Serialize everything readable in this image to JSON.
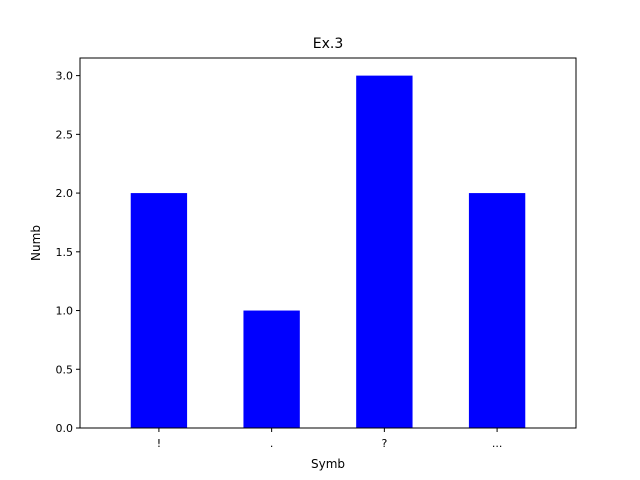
{
  "chart_data": {
    "type": "bar",
    "title": "Ex.3",
    "xlabel": "Symb",
    "ylabel": "Numb",
    "categories": [
      "!",
      ".",
      "?",
      "..."
    ],
    "values": [
      2,
      1,
      3,
      2
    ],
    "ylim": [
      0,
      3.15
    ],
    "yticks": [
      0,
      0.5,
      1,
      1.5,
      2,
      2.5,
      3
    ],
    "ytick_labels": [
      "0.0",
      "0.5",
      "1.0",
      "1.5",
      "2.0",
      "2.5",
      "3.0"
    ],
    "bar_color": "#0000ff",
    "grid": false,
    "legend": "none"
  }
}
